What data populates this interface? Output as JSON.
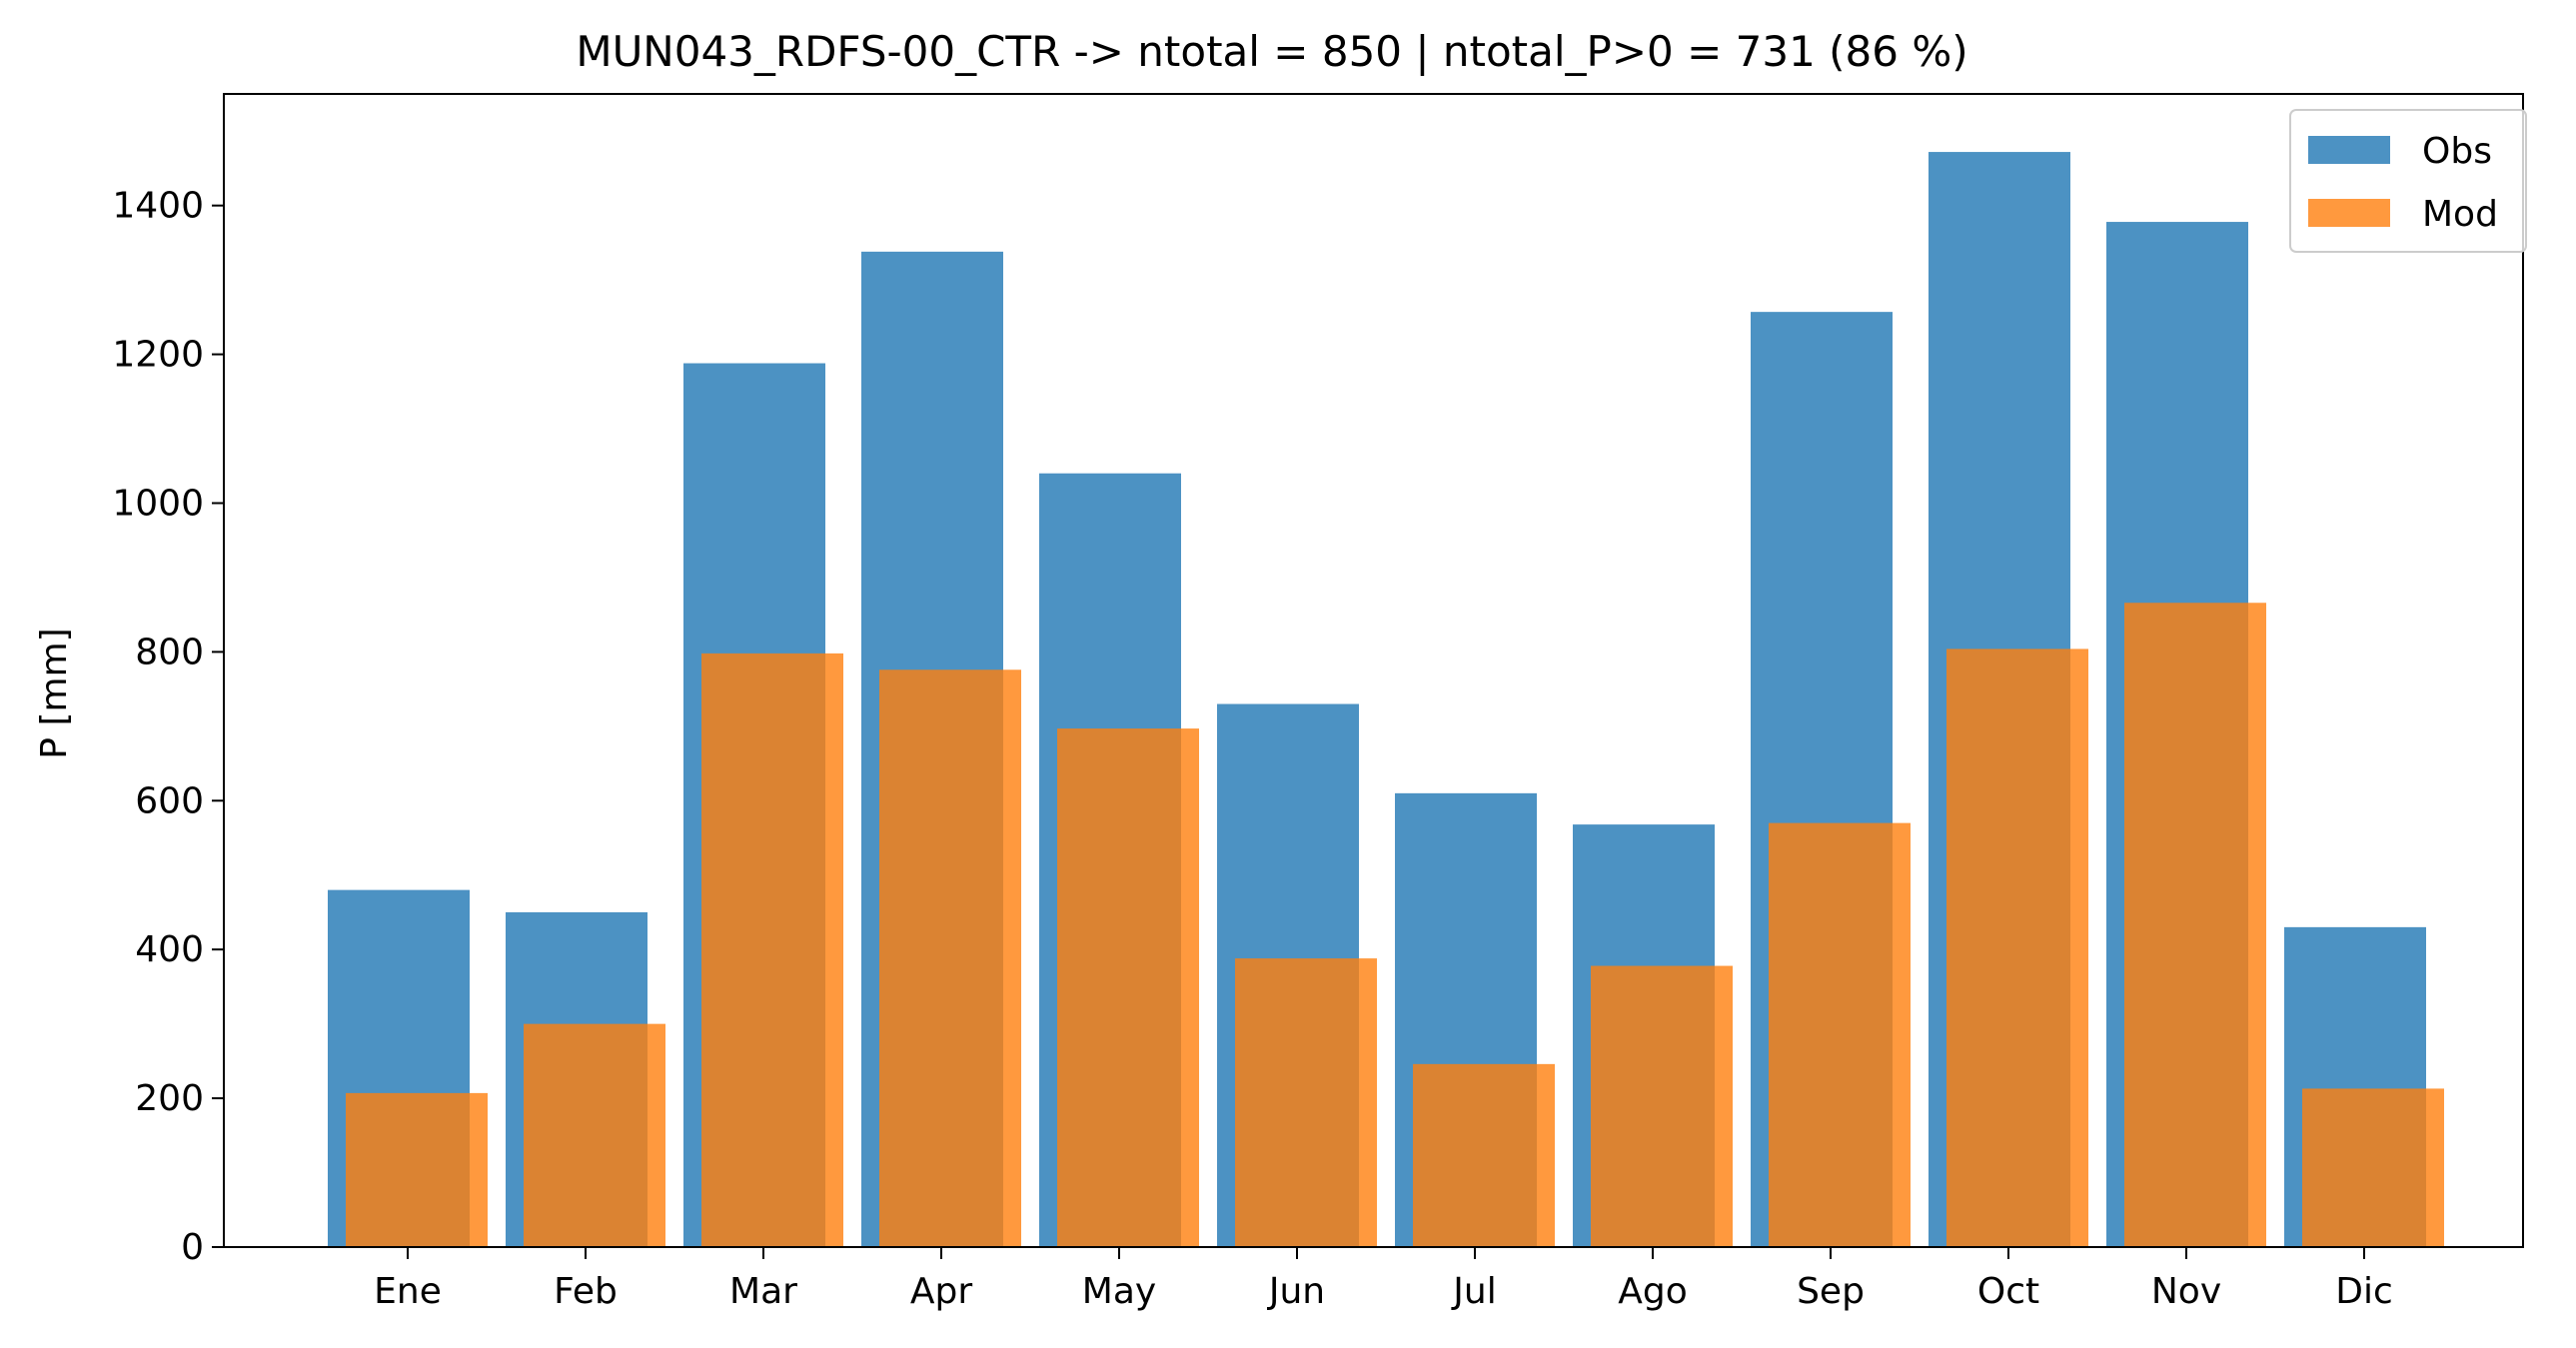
{
  "chart_data": {
    "type": "bar",
    "title": "MUN043_RDFS-00_CTR -> ntotal = 850 | ntotal_P>0 = 731 (86 %)",
    "xlabel": "",
    "ylabel": "P [mm]",
    "ylim": [
      0,
      1550
    ],
    "yticks": [
      0,
      200,
      400,
      600,
      800,
      1000,
      1200,
      1400
    ],
    "categories": [
      "Ene",
      "Feb",
      "Mar",
      "Apr",
      "May",
      "Jun",
      "Jul",
      "Ago",
      "Sep",
      "Oct",
      "Nov",
      "Dic"
    ],
    "series": [
      {
        "name": "Obs",
        "color": "#1f77b4",
        "opacity": 0.8,
        "values": [
          480,
          450,
          1188,
          1338,
          1040,
          730,
          610,
          568,
          1257,
          1472,
          1378,
          430
        ]
      },
      {
        "name": "Mod",
        "color": "#ff7f0e",
        "opacity": 0.8,
        "values": [
          207,
          300,
          798,
          776,
          697,
          388,
          246,
          378,
          570,
          804,
          866,
          213
        ]
      }
    ],
    "grid": false,
    "legend_position": "top-right"
  }
}
